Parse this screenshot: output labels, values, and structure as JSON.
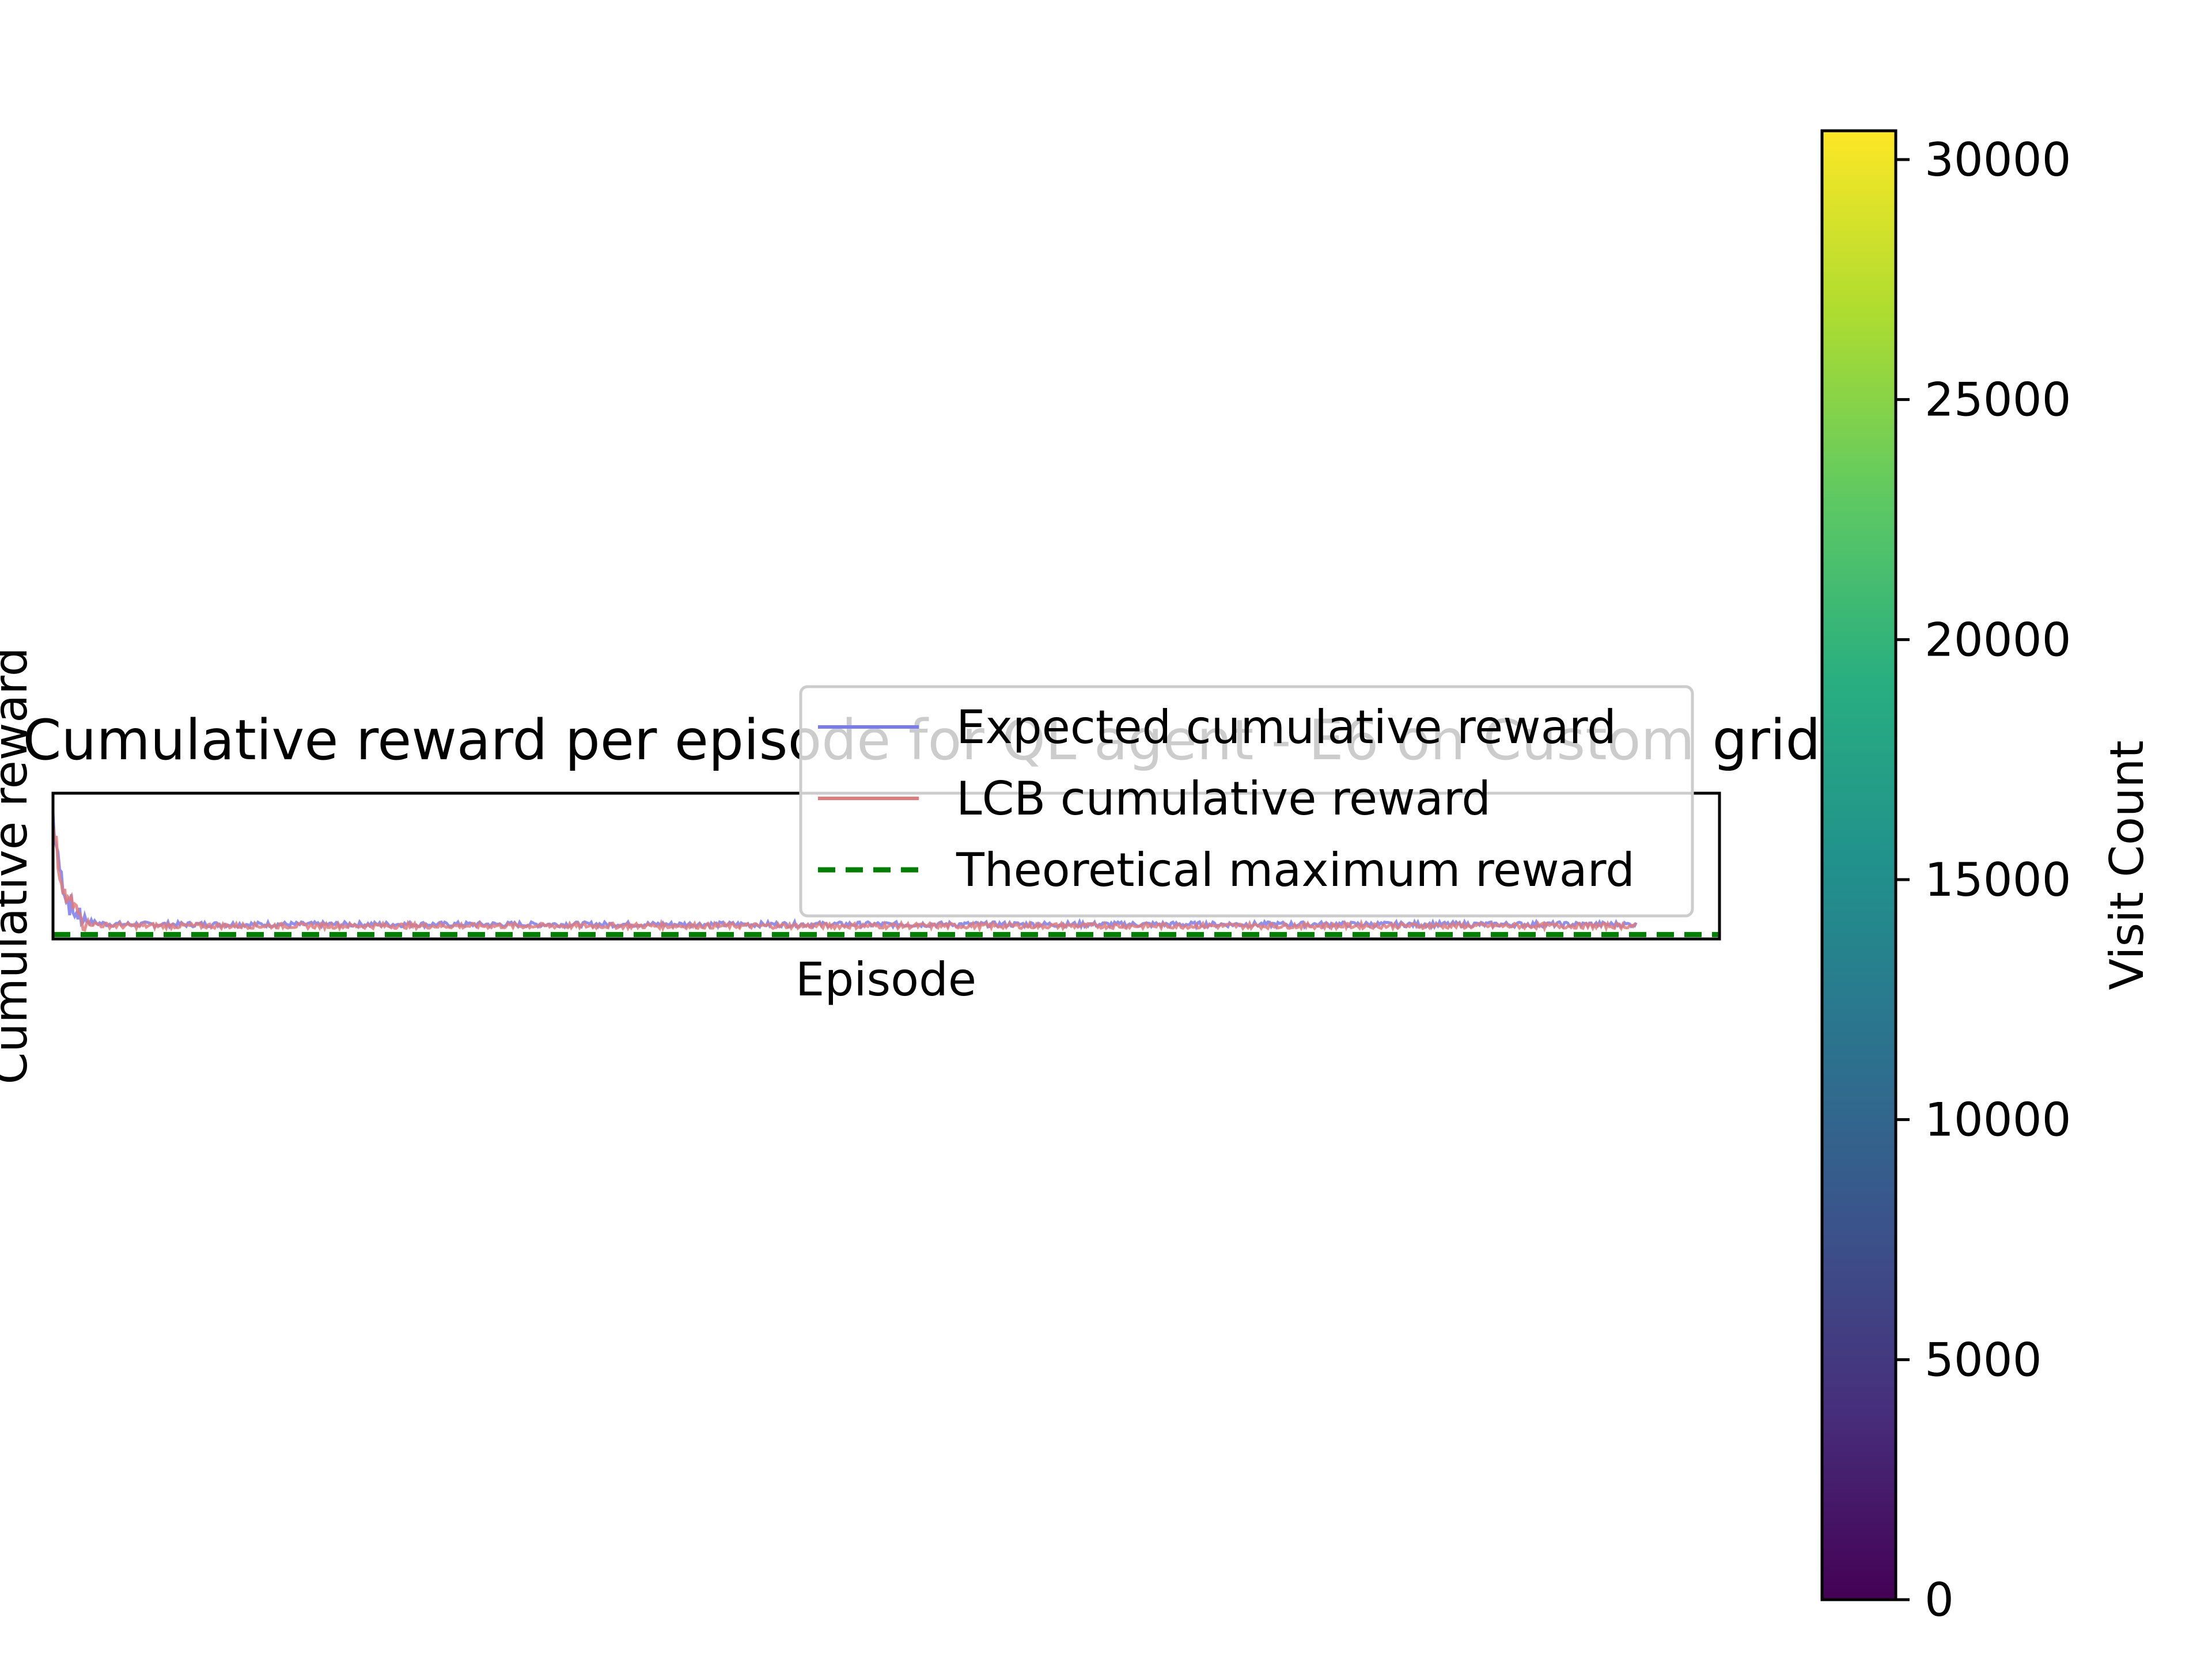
{
  "chart_data": {
    "type": "line",
    "title": "Cumulative reward per episode for QL agent - E6 on Custom grid",
    "xlabel": "Episode",
    "ylabel": "Cumulative reward",
    "x_range": [
      0,
      1000
    ],
    "y_range": [
      0,
      10
    ],
    "grid": false,
    "legend_placement": "upper right",
    "series": [
      {
        "name": "Expected cumulative reward",
        "color": "#7b7bf0",
        "shape": "sharp initial drop then flat noisy plateau",
        "start_value": 8.5,
        "plateau_value": 1.0,
        "x_end": 950
      },
      {
        "name": "LCB cumulative reward",
        "color": "#e07b7b",
        "shape": "sharp initial drop then flat noisy plateau",
        "start_value": 8.5,
        "plateau_value": 0.9,
        "x_end": 950
      },
      {
        "name": "Theoretical maximum reward",
        "color": "#008000",
        "style": "dashed",
        "value": 0.3
      }
    ],
    "colorbar": {
      "label": "Visit Count",
      "colormap": "viridis",
      "min": 0,
      "max": 30600,
      "ticks": [
        "0",
        "5000",
        "10000",
        "15000",
        "20000",
        "25000",
        "30000"
      ]
    }
  }
}
